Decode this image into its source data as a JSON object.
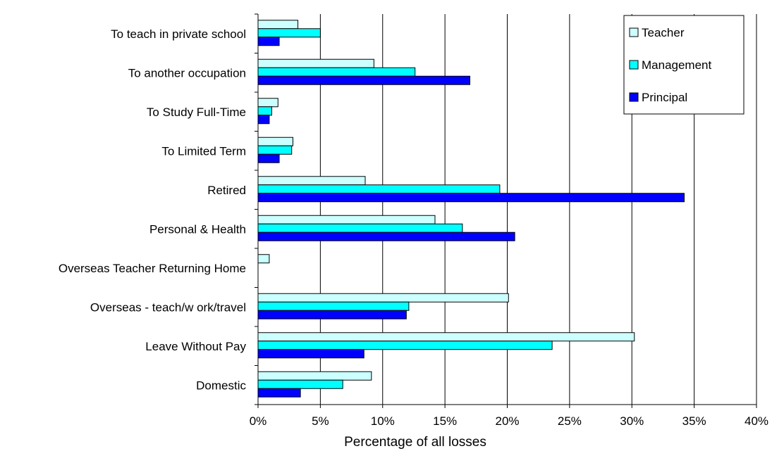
{
  "chart_data": {
    "type": "bar",
    "orientation": "horizontal",
    "categories": [
      "To teach in private school",
      "To another occupation",
      "To Study Full-Time",
      "To Limited Term",
      "Retired",
      "Personal & Health",
      "Overseas Teacher Returning Home",
      "Overseas - teach/w ork/travel",
      "Leave Without Pay",
      "Domestic"
    ],
    "series": [
      {
        "name": "Teacher",
        "color": "#ccffff",
        "values": [
          3.2,
          9.3,
          1.6,
          2.8,
          8.6,
          14.2,
          0.9,
          20.1,
          30.2,
          9.1
        ]
      },
      {
        "name": "Management",
        "color": "#00ffff",
        "values": [
          5.0,
          12.6,
          1.1,
          2.7,
          19.4,
          16.4,
          0,
          12.1,
          23.6,
          6.8
        ]
      },
      {
        "name": "Principal",
        "color": "#0000ff",
        "values": [
          1.7,
          17.0,
          0.9,
          1.7,
          34.2,
          20.6,
          0,
          11.9,
          8.5,
          3.4
        ]
      }
    ],
    "xlim": [
      0,
      40
    ],
    "xticks": [
      "0%",
      "5%",
      "10%",
      "15%",
      "20%",
      "25%",
      "30%",
      "35%",
      "40%"
    ],
    "xlabel": "Percentage of all losses",
    "ylabel": "",
    "title": "",
    "grid": "vertical",
    "legend_position": "top-right",
    "outline_color": "#000000"
  }
}
